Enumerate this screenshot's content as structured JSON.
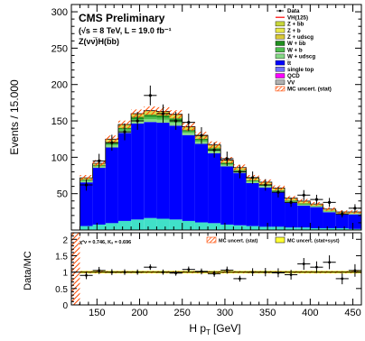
{
  "chart_data": [
    {
      "type": "bar",
      "stacked": true,
      "log_scale": false,
      "grid": false,
      "legend_position": "top-right",
      "title": "CMS Preliminary",
      "subtitle_lines": [
        "(√s = 8 TeV, L = 19.0 fb⁻¹",
        "Z(νν̅)H(b̅b)"
      ],
      "ylabel": "Events / 15.000",
      "ylim": [
        0,
        310
      ],
      "y_ticks": [
        50,
        100,
        150,
        200,
        250,
        300
      ],
      "xlim": [
        120,
        460
      ],
      "bin_width": 15,
      "bin_low_edges": [
        130,
        145,
        160,
        175,
        190,
        205,
        220,
        235,
        250,
        265,
        280,
        295,
        310,
        325,
        340,
        355,
        370,
        385,
        400,
        415,
        430,
        445
      ],
      "legend_entries": [
        {
          "label": "Data",
          "color": "#000000",
          "marker": "point"
        },
        {
          "label": "VH(125)",
          "color": "#ff0000",
          "marker": "line"
        },
        {
          "label": "Z + b̅b",
          "color": "#c8d63c",
          "marker": "box"
        },
        {
          "label": "Z + b",
          "color": "#e8e84a",
          "marker": "box"
        },
        {
          "label": "Z + udscg",
          "color": "#d8c838",
          "marker": "box"
        },
        {
          "label": "W + b̅b",
          "color": "#1f8f1f",
          "marker": "box"
        },
        {
          "label": "W + b",
          "color": "#4fbf4f",
          "marker": "box"
        },
        {
          "label": "W + udscg",
          "color": "#86d886",
          "marker": "box"
        },
        {
          "label": "t̅t",
          "color": "#0000ff",
          "marker": "box"
        },
        {
          "label": "single top",
          "color": "#7070ff",
          "marker": "box"
        },
        {
          "label": "QCD",
          "color": "#ff00ff",
          "marker": "box"
        },
        {
          "label": "VV",
          "color": "#b0b0b0",
          "marker": "box"
        },
        {
          "label": "MC uncert. (stat)",
          "color": "#ff4a00",
          "marker": "hatch"
        }
      ],
      "series": [
        {
          "name": "VV",
          "color": "#b0b0b0",
          "values": [
            0.5,
            0.5,
            0.5,
            0.5,
            0.5,
            0.5,
            0.5,
            0.5,
            0.5,
            0.5,
            0.5,
            0.5,
            0.5,
            0.5,
            0.5,
            0.5,
            0.5,
            0.5,
            0.5,
            0.5,
            0.5,
            0.5
          ]
        },
        {
          "name": "single top",
          "color": "#40e0c8",
          "values": [
            5,
            7,
            9,
            12,
            14,
            16,
            15,
            14,
            12,
            10,
            9,
            7,
            6,
            5,
            4,
            4,
            3,
            3,
            2,
            2,
            2,
            1
          ]
        },
        {
          "name": "t̅t",
          "color": "#0000ff",
          "values": [
            60,
            78,
            104,
            121,
            132,
            132,
            132,
            129,
            118,
            108,
            96,
            80,
            72,
            59,
            54,
            47,
            34,
            30,
            29,
            22,
            19,
            20
          ]
        },
        {
          "name": "W + udscg",
          "color": "#86d886",
          "values": [
            2,
            2,
            3,
            3,
            4,
            4,
            4,
            4,
            3,
            3,
            3,
            2,
            2,
            2,
            2,
            1,
            1,
            1,
            1,
            1,
            1,
            1
          ]
        },
        {
          "name": "W + b",
          "color": "#4fbf4f",
          "values": [
            1,
            1,
            2,
            2,
            2,
            3,
            3,
            3,
            2,
            2,
            2,
            1,
            1,
            1,
            1,
            1,
            1,
            1,
            1,
            1,
            0,
            0
          ]
        },
        {
          "name": "W + b̅b",
          "color": "#1f8f1f",
          "values": [
            1,
            1,
            2,
            2,
            3,
            3,
            3,
            3,
            2,
            2,
            2,
            2,
            1,
            1,
            1,
            1,
            1,
            1,
            0,
            0,
            0,
            0
          ]
        },
        {
          "name": "Z + udscg",
          "color": "#d8c838",
          "values": [
            1,
            1,
            2,
            2,
            2,
            2,
            2,
            2,
            2,
            2,
            2,
            1,
            1,
            1,
            1,
            1,
            1,
            1,
            1,
            1,
            1,
            1
          ]
        },
        {
          "name": "Z + b",
          "color": "#e8e84a",
          "values": [
            0.5,
            0.5,
            1,
            1,
            1,
            1,
            1,
            1,
            1,
            1,
            1,
            1,
            1,
            1,
            1,
            1,
            1,
            1,
            0.5,
            0.5,
            0.5,
            0.5
          ]
        },
        {
          "name": "Z + b̅b",
          "color": "#c8d63c",
          "values": [
            0.5,
            0.5,
            1,
            1,
            1,
            2,
            2,
            2,
            1,
            1,
            1,
            1,
            1,
            1,
            1,
            1,
            1,
            1,
            0.5,
            0.5,
            0.5,
            0.5
          ]
        },
        {
          "name": "VH(125)",
          "color": "#ff0000",
          "values": [
            0.3,
            0.3,
            0.4,
            0.5,
            0.5,
            0.6,
            0.6,
            0.6,
            0.6,
            0.5,
            0.5,
            0.5,
            0.4,
            0.4,
            0.4,
            0.3,
            0.3,
            0.3,
            0.3,
            0.3,
            0.3,
            0.3
          ]
        }
      ],
      "data_points": {
        "x": [
          137.5,
          152.5,
          167.5,
          182.5,
          197.5,
          212.5,
          227.5,
          242.5,
          257.5,
          272.5,
          287.5,
          302.5,
          317.5,
          332.5,
          347.5,
          362.5,
          377.5,
          392.5,
          407.5,
          422.5,
          437.5,
          452.5
        ],
        "y": [
          62,
          95,
          120,
          135,
          150,
          185,
          160,
          150,
          148,
          130,
          110,
          98,
          80,
          72,
          62,
          52,
          38,
          48,
          42,
          38,
          22,
          30
        ]
      }
    },
    {
      "type": "scatter",
      "ylabel": "Data/MC",
      "xlabel": "H p",
      "xlabel_sub": "T",
      "xlabel_unit": "[GeV]",
      "ylim": [
        0,
        2.2
      ],
      "y_ticks": [
        0,
        0.5,
        1,
        1.5,
        2
      ],
      "xlim": [
        120,
        460
      ],
      "x_ticks": [
        150,
        200,
        250,
        300,
        350,
        400,
        450
      ],
      "stat_text_chi2": "χ²ν = 0.746, Kₛ = 0.696",
      "legend_entries": [
        {
          "label": "MC uncert. (stat)",
          "color": "#ff4a00",
          "marker": "hatch"
        },
        {
          "label": "MC uncert. (stat+syst)",
          "color": "#ffff33",
          "marker": "box"
        }
      ],
      "ratio": {
        "x": [
          137.5,
          152.5,
          167.5,
          182.5,
          197.5,
          212.5,
          227.5,
          242.5,
          257.5,
          272.5,
          287.5,
          302.5,
          317.5,
          332.5,
          347.5,
          362.5,
          377.5,
          392.5,
          407.5,
          422.5,
          437.5,
          452.5
        ],
        "y": [
          0.9,
          1.05,
          1.0,
          1.0,
          1.0,
          1.15,
          1.0,
          0.97,
          1.08,
          1.02,
          0.95,
          1.06,
          0.8,
          1.0,
          1.0,
          0.98,
          0.92,
          1.25,
          1.15,
          1.3,
          0.8,
          1.05
        ]
      }
    }
  ]
}
